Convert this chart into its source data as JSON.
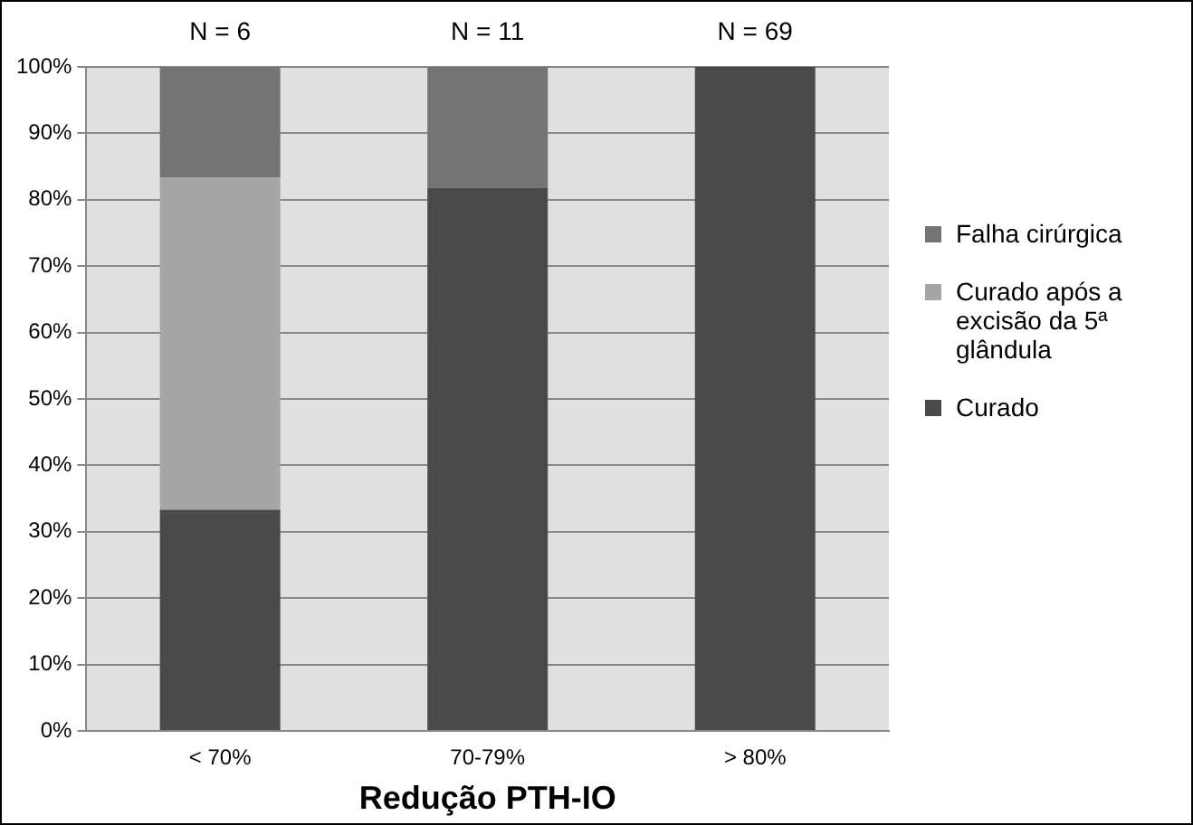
{
  "chart_data": {
    "type": "bar",
    "stacked": true,
    "xlabel": "Redução PTH-IO",
    "categories": [
      "< 70%",
      "70-79%",
      "> 80%"
    ],
    "series": [
      {
        "name": "Curado",
        "color": "#4a4a4a",
        "values": [
          33.3,
          81.8,
          100
        ]
      },
      {
        "name": "Curado após a excisão da 5ª glândula",
        "color": "#a6a6a6",
        "values": [
          50,
          0,
          0
        ]
      },
      {
        "name": "Falha cirúrgica",
        "color": "#747474",
        "values": [
          16.7,
          18.2,
          0
        ]
      }
    ],
    "ylim": [
      0,
      100
    ],
    "yticks": [
      {
        "value": 0,
        "label": "0%"
      },
      {
        "value": 10,
        "label": "10%"
      },
      {
        "value": 20,
        "label": "20%"
      },
      {
        "value": 30,
        "label": "30%"
      },
      {
        "value": 40,
        "label": "40%"
      },
      {
        "value": 50,
        "label": "50%"
      },
      {
        "value": 60,
        "label": "60%"
      },
      {
        "value": 70,
        "label": "70%"
      },
      {
        "value": 80,
        "label": "80%"
      },
      {
        "value": 90,
        "label": "90%"
      },
      {
        "value": 100,
        "label": "100%"
      }
    ],
    "grid": "y",
    "legend": "right",
    "annotations": [
      "N = 6",
      "N = 11",
      "N = 69"
    ]
  }
}
